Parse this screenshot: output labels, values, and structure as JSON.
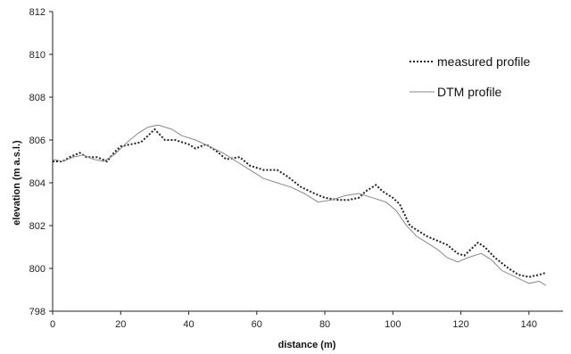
{
  "chart_data": {
    "type": "line",
    "title": "",
    "xlabel": "distance (m)",
    "ylabel": "elevation (m a.s.l.)",
    "xlim": [
      0,
      150
    ],
    "ylim": [
      798,
      812
    ],
    "xticks": [
      0,
      20,
      40,
      60,
      80,
      100,
      120,
      140
    ],
    "yticks": [
      798,
      800,
      802,
      804,
      806,
      808,
      810,
      812
    ],
    "grid": false,
    "legend_position": "top-right",
    "series": [
      {
        "name": "measured profile",
        "style": "dotted",
        "color": "#222222",
        "points": [
          [
            0,
            805.0
          ],
          [
            3,
            805.0
          ],
          [
            5,
            805.2
          ],
          [
            8,
            805.4
          ],
          [
            10,
            805.2
          ],
          [
            13,
            805.2
          ],
          [
            16,
            805.0
          ],
          [
            18,
            805.4
          ],
          [
            20,
            805.7
          ],
          [
            23,
            805.8
          ],
          [
            26,
            805.9
          ],
          [
            28,
            806.2
          ],
          [
            30,
            806.5
          ],
          [
            33,
            806.0
          ],
          [
            36,
            806.0
          ],
          [
            40,
            805.8
          ],
          [
            42,
            805.6
          ],
          [
            45,
            805.8
          ],
          [
            48,
            805.5
          ],
          [
            51,
            805.1
          ],
          [
            55,
            805.2
          ],
          [
            58,
            804.8
          ],
          [
            62,
            804.6
          ],
          [
            66,
            804.6
          ],
          [
            69,
            804.3
          ],
          [
            73,
            803.8
          ],
          [
            77,
            803.5
          ],
          [
            80,
            803.3
          ],
          [
            84,
            803.2
          ],
          [
            87,
            803.2
          ],
          [
            90,
            803.3
          ],
          [
            92,
            803.6
          ],
          [
            95,
            803.9
          ],
          [
            97,
            803.6
          ],
          [
            100,
            803.3
          ],
          [
            102,
            803.0
          ],
          [
            105,
            802.0
          ],
          [
            108,
            801.7
          ],
          [
            110,
            801.5
          ],
          [
            113,
            801.3
          ],
          [
            116,
            801.1
          ],
          [
            119,
            800.7
          ],
          [
            121,
            800.6
          ],
          [
            125,
            801.2
          ],
          [
            127,
            801.0
          ],
          [
            130,
            800.5
          ],
          [
            134,
            800.0
          ],
          [
            137,
            799.7
          ],
          [
            140,
            799.6
          ],
          [
            143,
            799.7
          ],
          [
            145,
            799.8
          ]
        ]
      },
      {
        "name": "DTM profile",
        "style": "solid",
        "color": "#888888",
        "points": [
          [
            0,
            805.1
          ],
          [
            3,
            805.0
          ],
          [
            6,
            805.2
          ],
          [
            9,
            805.3
          ],
          [
            12,
            805.1
          ],
          [
            15,
            805.0
          ],
          [
            18,
            805.3
          ],
          [
            22,
            805.9
          ],
          [
            25,
            806.3
          ],
          [
            28,
            806.6
          ],
          [
            31,
            806.7
          ],
          [
            35,
            806.5
          ],
          [
            38,
            806.2
          ],
          [
            42,
            806.0
          ],
          [
            46,
            805.7
          ],
          [
            50,
            805.4
          ],
          [
            54,
            805.0
          ],
          [
            58,
            804.6
          ],
          [
            62,
            804.2
          ],
          [
            66,
            804.0
          ],
          [
            70,
            803.8
          ],
          [
            74,
            803.5
          ],
          [
            78,
            803.1
          ],
          [
            82,
            803.2
          ],
          [
            86,
            803.4
          ],
          [
            90,
            803.5
          ],
          [
            94,
            803.3
          ],
          [
            98,
            803.1
          ],
          [
            101,
            802.7
          ],
          [
            104,
            802.0
          ],
          [
            107,
            801.5
          ],
          [
            110,
            801.2
          ],
          [
            113,
            800.9
          ],
          [
            116,
            800.5
          ],
          [
            119,
            800.3
          ],
          [
            122,
            800.5
          ],
          [
            126,
            800.7
          ],
          [
            129,
            800.4
          ],
          [
            132,
            799.9
          ],
          [
            136,
            799.6
          ],
          [
            140,
            799.3
          ],
          [
            143,
            799.4
          ],
          [
            145,
            799.2
          ]
        ]
      }
    ]
  }
}
